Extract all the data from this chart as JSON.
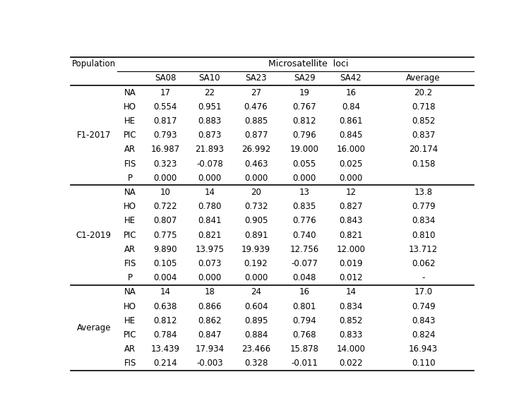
{
  "title": "Microsatellite  loci",
  "col_headers": [
    "Population",
    "",
    "SA08",
    "SA10",
    "SA23",
    "SA29",
    "SA42",
    "Average"
  ],
  "data": {
    "F1-2017": {
      "rows": [
        [
          "NA",
          "17",
          "22",
          "27",
          "19",
          "16",
          "20.2"
        ],
        [
          "HO",
          "0.554",
          "0.951",
          "0.476",
          "0.767",
          "0.84",
          "0.718"
        ],
        [
          "HE",
          "0.817",
          "0.883",
          "0.885",
          "0.812",
          "0.861",
          "0.852"
        ],
        [
          "PIC",
          "0.793",
          "0.873",
          "0.877",
          "0.796",
          "0.845",
          "0.837"
        ],
        [
          "AR",
          "16.987",
          "21.893",
          "26.992",
          "19.000",
          "16.000",
          "20.174"
        ],
        [
          "FIS",
          "0.323",
          "-0.078",
          "0.463",
          "0.055",
          "0.025",
          "0.158"
        ],
        [
          "P",
          "0.000",
          "0.000",
          "0.000",
          "0.000",
          "0.000",
          ""
        ]
      ]
    },
    "C1-2019": {
      "rows": [
        [
          "NA",
          "10",
          "14",
          "20",
          "13",
          "12",
          "13.8"
        ],
        [
          "HO",
          "0.722",
          "0.780",
          "0.732",
          "0.835",
          "0.827",
          "0.779"
        ],
        [
          "HE",
          "0.807",
          "0.841",
          "0.905",
          "0.776",
          "0.843",
          "0.834"
        ],
        [
          "PIC",
          "0.775",
          "0.821",
          "0.891",
          "0.740",
          "0.821",
          "0.810"
        ],
        [
          "AR",
          "9.890",
          "13.975",
          "19.939",
          "12.756",
          "12.000",
          "13.712"
        ],
        [
          "FIS",
          "0.105",
          "0.073",
          "0.192",
          "-0.077",
          "0.019",
          "0.062"
        ],
        [
          "P",
          "0.004",
          "0.000",
          "0.000",
          "0.048",
          "0.012",
          "-"
        ]
      ]
    },
    "Average": {
      "rows": [
        [
          "NA",
          "14",
          "18",
          "24",
          "16",
          "14",
          "17.0"
        ],
        [
          "HO",
          "0.638",
          "0.866",
          "0.604",
          "0.801",
          "0.834",
          "0.749"
        ],
        [
          "HE",
          "0.812",
          "0.862",
          "0.895",
          "0.794",
          "0.852",
          "0.843"
        ],
        [
          "PIC",
          "0.784",
          "0.847",
          "0.884",
          "0.768",
          "0.833",
          "0.824"
        ],
        [
          "AR",
          "13.439",
          "17.934",
          "23.466",
          "15.878",
          "14.000",
          "16.943"
        ],
        [
          "FIS",
          "0.214",
          "-0.003",
          "0.328",
          "-0.011",
          "0.022",
          "0.110"
        ]
      ]
    }
  },
  "background_color": "#ffffff",
  "text_color": "#000000",
  "line_color": "#000000",
  "fontsize": 8.5
}
